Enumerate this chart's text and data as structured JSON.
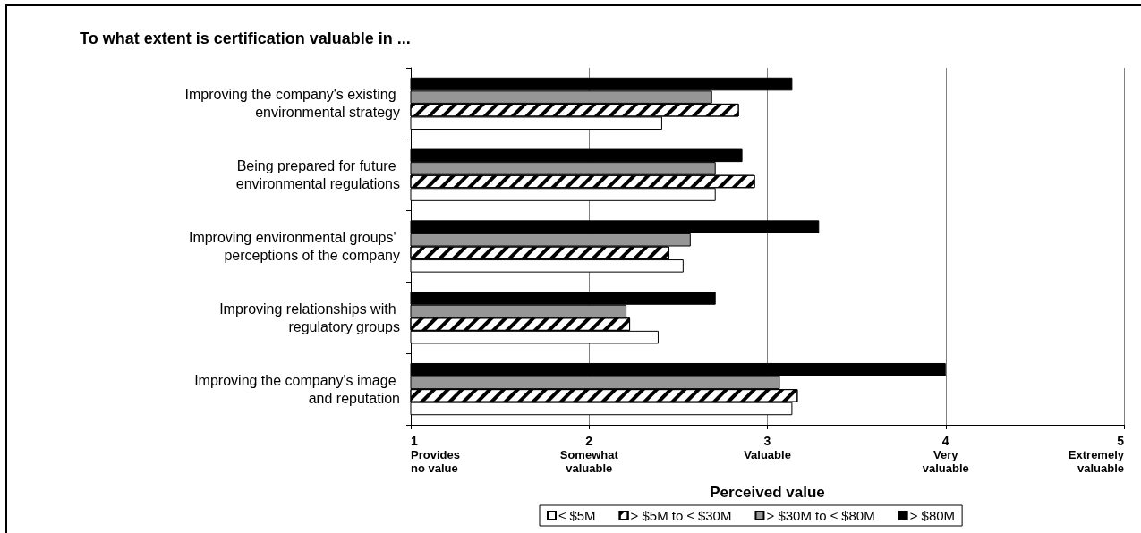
{
  "chart_data": {
    "type": "bar",
    "orientation": "horizontal",
    "title": "To what extent is certification valuable in ...",
    "xlabel": "Perceived value",
    "categories": [
      "Improving the company's existing environmental strategy",
      "Being prepared for future environmental regulations",
      "Improving environmental groups' perceptions of the company",
      "Improving relationships with regulatory groups",
      "Improving the company's image and reputation"
    ],
    "series": [
      {
        "name": "≤ $5M",
        "color": "#ffffff",
        "values": [
          2.41,
          2.71,
          2.53,
          2.39,
          3.14
        ]
      },
      {
        "name": "> $5M to ≤ $30M",
        "color": "#ffffff",
        "values": [
          2.84,
          2.93,
          2.45,
          2.23,
          3.17
        ]
      },
      {
        "name": "> $30M to ≤ $80M",
        "color": "#969696",
        "values": [
          2.69,
          2.71,
          2.57,
          2.21,
          3.07
        ]
      },
      {
        "name": "> $80M",
        "color": "#000000",
        "values": [
          3.14,
          2.86,
          3.29,
          2.71,
          4.0
        ]
      }
    ],
    "xlim": [
      1,
      5
    ],
    "xticks": [
      {
        "value": 1,
        "label": "1\nProvides\nno value"
      },
      {
        "value": 2,
        "label": "2\nSomewhat\nvaluable"
      },
      {
        "value": 3,
        "label": "3\nValuable"
      },
      {
        "value": 4,
        "label": "4\nVery\nvaluable"
      },
      {
        "value": 5,
        "label": "5\nExtremely\nvaluable"
      }
    ],
    "grid": "x",
    "legend": "bottom"
  }
}
